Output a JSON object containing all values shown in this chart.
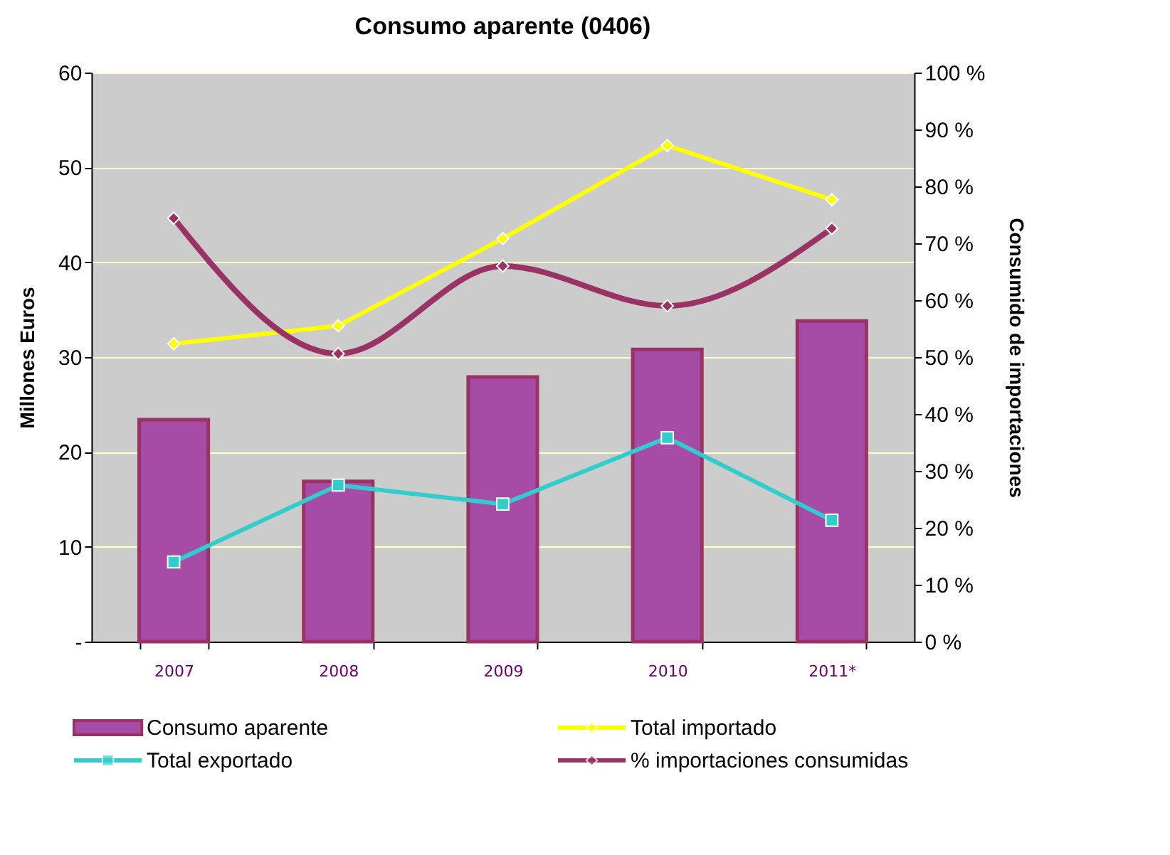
{
  "chart_data": {
    "type": "bar",
    "title": "Consumo aparente (0406)",
    "ylabel": "Millones  Euros",
    "y2label": "Consumido de importaciones",
    "categories": [
      "2007",
      "2008",
      "2009",
      "2010",
      "2011*"
    ],
    "series": [
      {
        "name": "Consumo aparente",
        "color": "#a64ca6",
        "values": [
          23.4,
          16.9,
          27.9,
          30.8,
          33.8
        ]
      },
      {
        "name": "Total importado",
        "type": "line",
        "color": "#ffff00",
        "marker": "diamond",
        "values": [
          31.4,
          33.3,
          42.5,
          52.3,
          46.6
        ]
      },
      {
        "name": "Total exportado",
        "type": "line",
        "color": "#33cccc",
        "marker": "square",
        "values": [
          8.4,
          16.5,
          14.5,
          21.5,
          12.8
        ]
      },
      {
        "name": "% importaciones consumidas",
        "type": "line",
        "color": "#993366",
        "marker": "diamond",
        "axis": "y2",
        "values": [
          74.4,
          50.6,
          66.0,
          59.0,
          72.6
        ]
      }
    ],
    "ylim": [
      0,
      60
    ],
    "yticks": [
      {
        "value": 0,
        "label": "-"
      },
      10,
      20,
      30,
      40,
      50,
      60
    ],
    "y2lim": [
      0,
      100
    ],
    "y2ticks": [
      {
        "value": 0,
        "label": "0 %"
      },
      {
        "value": 10,
        "label": "10 %"
      },
      {
        "value": 20,
        "label": "20 %"
      },
      {
        "value": 30,
        "label": "30 %"
      },
      {
        "value": 40,
        "label": "40 %"
      },
      {
        "value": 50,
        "label": "50 %"
      },
      {
        "value": 60,
        "label": "60 %"
      },
      {
        "value": 70,
        "label": "70 %"
      },
      {
        "value": 80,
        "label": "80 %"
      },
      {
        "value": 90,
        "label": "90 %"
      },
      {
        "value": 100,
        "label": "100 %"
      }
    ],
    "grid": "y",
    "legend": "bottom"
  }
}
